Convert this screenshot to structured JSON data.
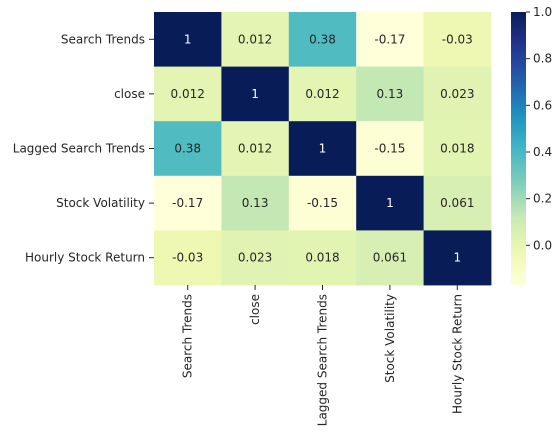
{
  "chart_data": {
    "type": "heatmap",
    "title": "",
    "xlabel": "",
    "ylabel": "",
    "rows": [
      "Search Trends",
      "close",
      "Lagged Search Trends",
      "Stock Volatility",
      "Hourly Stock Return"
    ],
    "columns": [
      "Search Trends",
      "close",
      "Lagged Search Trends",
      "Stock Volatility",
      "Hourly Stock Return"
    ],
    "values": [
      [
        1,
        0.012,
        0.38,
        -0.17,
        -0.03
      ],
      [
        0.012,
        1,
        0.012,
        0.13,
        0.023
      ],
      [
        0.38,
        0.012,
        1,
        -0.15,
        0.018
      ],
      [
        -0.17,
        0.13,
        -0.15,
        1,
        0.061
      ],
      [
        -0.03,
        0.023,
        0.018,
        0.061,
        1
      ]
    ],
    "value_labels": [
      [
        "1",
        "0.012",
        "0.38",
        "-0.17",
        "-0.03"
      ],
      [
        "0.012",
        "1",
        "0.012",
        "0.13",
        "0.023"
      ],
      [
        "0.38",
        "0.012",
        "1",
        "-0.15",
        "0.018"
      ],
      [
        "-0.17",
        "0.13",
        "-0.15",
        "1",
        "0.061"
      ],
      [
        "-0.03",
        "0.023",
        "0.018",
        "0.061",
        "1"
      ]
    ],
    "colormap": "YlGnBu",
    "colorbar": {
      "range": [
        -0.17,
        1
      ],
      "ticks": [
        0.0,
        0.2,
        0.4,
        0.6,
        0.8,
        1.0
      ],
      "tick_labels": [
        "0.0",
        "0.2",
        "0.4",
        "0.6",
        "0.8",
        "1.0"
      ]
    },
    "annotated": true
  }
}
